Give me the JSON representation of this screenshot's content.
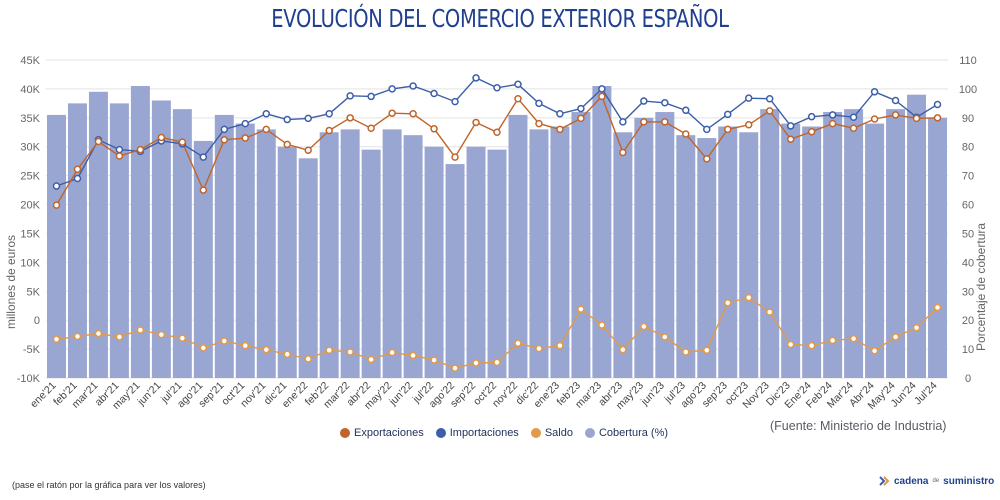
{
  "title": "EVOLUCIÓN DEL COMERCIO EXTERIOR ESPAÑOL",
  "source": "(Fuente: Ministerio de Industria)",
  "footnote": "(pase el ratón por la gráfica para ver los valores)",
  "brand": {
    "name_left": "cadena",
    "name_mid": "de",
    "name_right": "suministro"
  },
  "colors": {
    "exportaciones": "#c0642a",
    "importaciones": "#3d5ea8",
    "saldo": "#e09a4a",
    "cobertura": "#9aa6d2",
    "grid": "#e3e3e3",
    "axis_text": "#666666"
  },
  "chart_data": {
    "type": "bar+line",
    "title": "EVOLUCIÓN DEL COMERCIO EXTERIOR ESPAÑOL",
    "ylabel_left": "millones de euros",
    "ylabel_right": "Porcentaje de cobertura",
    "ylim_left": [
      -10000,
      45000
    ],
    "ylim_right": [
      0,
      110
    ],
    "yticks_left": [
      "45K",
      "40K",
      "35K",
      "30K",
      "25K",
      "20K",
      "15K",
      "10K",
      "5K",
      "0",
      "-5K",
      "-10K"
    ],
    "yticks_left_values": [
      45000,
      40000,
      35000,
      30000,
      25000,
      20000,
      15000,
      10000,
      5000,
      0,
      -5000,
      -10000
    ],
    "yticks_right": [
      "110",
      "100",
      "90",
      "80",
      "70",
      "60",
      "50",
      "40",
      "30",
      "20",
      "10",
      "0"
    ],
    "yticks_right_values": [
      110,
      100,
      90,
      80,
      70,
      60,
      50,
      40,
      30,
      20,
      10,
      0
    ],
    "legend_position": "bottom",
    "grid": true,
    "categories": [
      "ene'21",
      "feb'21",
      "mar'21",
      "abr'21",
      "may'21",
      "jun'21",
      "jul'21",
      "ago'21",
      "sep'21",
      "oct'21",
      "nov'21",
      "dic'21",
      "ene'22",
      "feb'22",
      "mar'22",
      "abr'22",
      "may'22",
      "jun'22",
      "jul'22",
      "ago'22",
      "sep'22",
      "oct'22",
      "nov'22",
      "dic'22",
      "ene'23",
      "feb'23",
      "mar'23",
      "abr'23",
      "may'23",
      "jun'23",
      "jul'23",
      "ago'23",
      "sep'23",
      "oct'23",
      "Nov'23",
      "Dic'23",
      "Ene'24",
      "Feb'24",
      "Mar'24",
      "Abr'24",
      "May'24",
      "Jun'24",
      "Jul'24"
    ],
    "series": [
      {
        "name": "Exportaciones",
        "axis": "left",
        "type": "line",
        "values": [
          19900,
          26100,
          30900,
          28400,
          29500,
          31600,
          30800,
          22500,
          31200,
          31500,
          33000,
          30400,
          29400,
          32800,
          35000,
          33200,
          35800,
          35700,
          33100,
          28200,
          34200,
          32500,
          38300,
          34000,
          33000,
          34900,
          38700,
          29000,
          34300,
          34300,
          32200,
          27900,
          33000,
          33800,
          36200,
          31300,
          32600,
          34000,
          33200,
          34800,
          35500,
          34900,
          35000
        ]
      },
      {
        "name": "Importaciones",
        "axis": "left",
        "type": "line",
        "values": [
          23200,
          24500,
          31200,
          29500,
          29200,
          31000,
          30500,
          28200,
          33000,
          34000,
          35700,
          34700,
          34900,
          35700,
          38800,
          38700,
          40000,
          40500,
          39200,
          37800,
          41900,
          40200,
          40800,
          37500,
          35700,
          36600,
          40000,
          34300,
          37900,
          37600,
          36300,
          33000,
          35600,
          38400,
          38300,
          33600,
          35200,
          35500,
          35100,
          39500,
          38000,
          35100,
          37300
        ]
      },
      {
        "name": "Saldo",
        "axis": "left",
        "type": "line",
        "values": [
          -3300,
          -2800,
          -2300,
          -2900,
          -1700,
          -2500,
          -3100,
          -4800,
          -3600,
          -4400,
          -5100,
          -5900,
          -6700,
          -5200,
          -5500,
          -6800,
          -5600,
          -6100,
          -6900,
          -8300,
          -7400,
          -7300,
          -4000,
          -4900,
          -4400,
          1900,
          -850,
          -5100,
          -1100,
          -2900,
          -5500,
          -5200,
          3000,
          3900,
          1400,
          -4200,
          -4400,
          -3500,
          -3200,
          -5300,
          -2900,
          -1300,
          2200
        ]
      },
      {
        "name": "Cobertura (%)",
        "axis": "right",
        "type": "bar",
        "values": [
          91,
          95,
          99,
          95,
          101,
          96,
          93,
          82,
          91,
          88,
          86,
          80,
          76,
          85,
          86,
          79,
          86,
          84,
          80,
          74,
          80,
          79,
          91,
          86,
          87,
          92,
          101,
          85,
          90,
          92,
          84,
          83,
          87,
          85,
          93,
          88,
          87,
          92,
          93,
          88,
          93,
          98,
          90
        ]
      }
    ]
  }
}
